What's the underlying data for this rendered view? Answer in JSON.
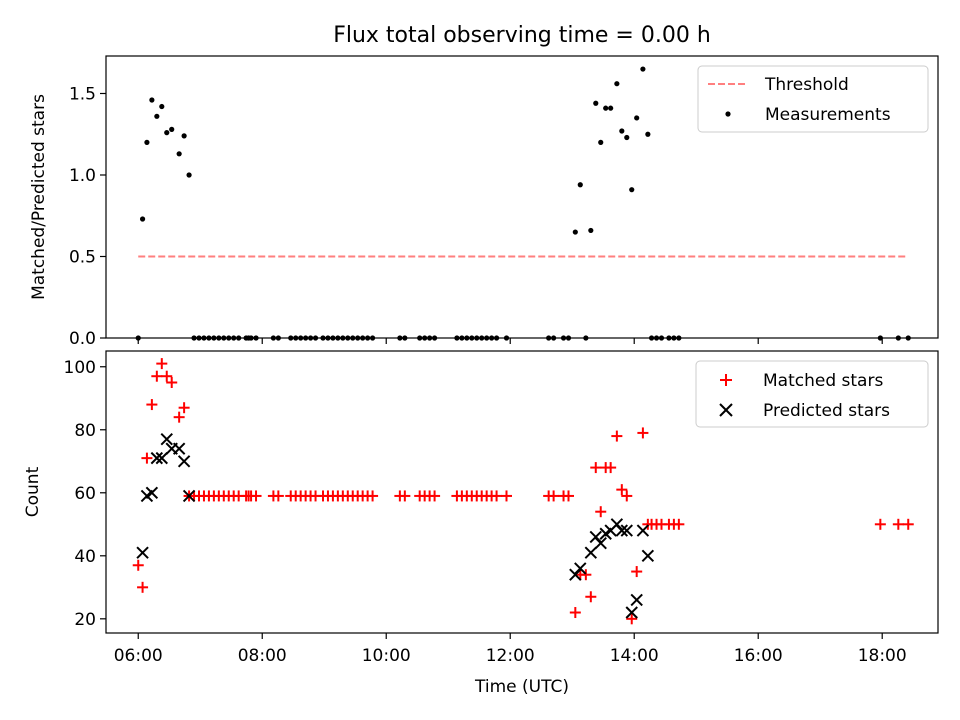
{
  "figure": {
    "title": "Flux total observing time = 0.00 h",
    "xlabel": "Time (UTC)",
    "xticks": [
      {
        "v": 6,
        "label": "06:00"
      },
      {
        "v": 8,
        "label": "08:00"
      },
      {
        "v": 10,
        "label": "10:00"
      },
      {
        "v": 12,
        "label": "12:00"
      },
      {
        "v": 14,
        "label": "14:00"
      },
      {
        "v": 16,
        "label": "16:00"
      },
      {
        "v": 18,
        "label": "18:00"
      }
    ],
    "xlim": [
      5.48,
      18.9
    ]
  },
  "chart_data": [
    {
      "type": "scatter",
      "id": "ratio",
      "ylabel": "Matched/Predicted stars",
      "ylim": [
        0,
        1.73
      ],
      "yticks": [
        {
          "v": 0,
          "label": "0.0"
        },
        {
          "v": 0.5,
          "label": "0.5"
        },
        {
          "v": 1.0,
          "label": "1.0"
        },
        {
          "v": 1.5,
          "label": "1.5"
        }
      ],
      "legend": {
        "placement": "top-right",
        "entries": [
          {
            "label": "Threshold",
            "style": "dashed-line",
            "color": "#ff7f7f"
          },
          {
            "label": "Measurements",
            "style": "dot",
            "color": "#000000"
          }
        ]
      },
      "threshold": {
        "name": "Threshold",
        "y": 0.5,
        "x": [
          6.0,
          18.42
        ],
        "color": "#ff7f7f"
      },
      "series": [
        {
          "name": "Measurements",
          "marker": "dot",
          "color": "#000000",
          "points": [
            [
              6.0,
              0
            ],
            [
              6.07,
              0.73
            ],
            [
              6.14,
              1.2
            ],
            [
              6.22,
              1.46
            ],
            [
              6.3,
              1.36
            ],
            [
              6.38,
              1.42
            ],
            [
              6.46,
              1.26
            ],
            [
              6.54,
              1.28
            ],
            [
              6.66,
              1.13
            ],
            [
              6.74,
              1.24
            ],
            [
              6.82,
              1.0
            ],
            [
              6.9,
              0
            ],
            [
              6.98,
              0
            ],
            [
              7.06,
              0
            ],
            [
              7.14,
              0
            ],
            [
              7.22,
              0
            ],
            [
              7.3,
              0
            ],
            [
              7.38,
              0
            ],
            [
              7.46,
              0
            ],
            [
              7.54,
              0
            ],
            [
              7.62,
              0
            ],
            [
              7.74,
              0
            ],
            [
              7.78,
              0
            ],
            [
              7.82,
              0
            ],
            [
              7.9,
              0
            ],
            [
              8.18,
              0
            ],
            [
              8.26,
              0
            ],
            [
              8.46,
              0
            ],
            [
              8.54,
              0
            ],
            [
              8.62,
              0
            ],
            [
              8.7,
              0
            ],
            [
              8.78,
              0
            ],
            [
              8.86,
              0
            ],
            [
              8.98,
              0
            ],
            [
              9.06,
              0
            ],
            [
              9.14,
              0
            ],
            [
              9.22,
              0
            ],
            [
              9.3,
              0
            ],
            [
              9.38,
              0
            ],
            [
              9.46,
              0
            ],
            [
              9.54,
              0
            ],
            [
              9.62,
              0
            ],
            [
              9.7,
              0
            ],
            [
              9.78,
              0
            ],
            [
              10.22,
              0
            ],
            [
              10.3,
              0
            ],
            [
              10.54,
              0
            ],
            [
              10.62,
              0
            ],
            [
              10.7,
              0
            ],
            [
              10.78,
              0
            ],
            [
              11.14,
              0
            ],
            [
              11.22,
              0
            ],
            [
              11.3,
              0
            ],
            [
              11.38,
              0
            ],
            [
              11.46,
              0
            ],
            [
              11.54,
              0
            ],
            [
              11.62,
              0
            ],
            [
              11.7,
              0
            ],
            [
              11.78,
              0
            ],
            [
              11.94,
              0
            ],
            [
              12.62,
              0
            ],
            [
              12.7,
              0
            ],
            [
              12.86,
              0
            ],
            [
              12.94,
              0
            ],
            [
              13.22,
              0
            ],
            [
              13.05,
              0.65
            ],
            [
              13.13,
              0.94
            ],
            [
              13.3,
              0.66
            ],
            [
              13.38,
              1.44
            ],
            [
              13.46,
              1.2
            ],
            [
              13.54,
              1.41
            ],
            [
              13.62,
              1.41
            ],
            [
              13.72,
              1.56
            ],
            [
              13.8,
              1.27
            ],
            [
              13.88,
              1.23
            ],
            [
              13.96,
              0.91
            ],
            [
              14.04,
              1.35
            ],
            [
              14.14,
              1.65
            ],
            [
              14.22,
              1.25
            ],
            [
              14.28,
              0
            ],
            [
              14.36,
              0
            ],
            [
              14.44,
              0
            ],
            [
              14.56,
              0
            ],
            [
              14.64,
              0
            ],
            [
              14.72,
              0
            ],
            [
              17.97,
              0
            ],
            [
              18.26,
              0
            ],
            [
              18.42,
              0
            ]
          ]
        }
      ]
    },
    {
      "type": "scatter",
      "id": "counts",
      "ylabel": "Count",
      "ylim": [
        15.5,
        105
      ],
      "yticks": [
        {
          "v": 20,
          "label": "20"
        },
        {
          "v": 40,
          "label": "40"
        },
        {
          "v": 60,
          "label": "60"
        },
        {
          "v": 80,
          "label": "80"
        },
        {
          "v": 100,
          "label": "100"
        }
      ],
      "legend": {
        "placement": "top-right",
        "entries": [
          {
            "label": "Matched stars",
            "style": "plus",
            "color": "#ff0000"
          },
          {
            "label": "Predicted stars",
            "style": "cross",
            "color": "#000000"
          }
        ]
      },
      "series": [
        {
          "name": "Matched stars",
          "marker": "plus",
          "color": "#ff0000",
          "points": [
            [
              6.0,
              37
            ],
            [
              6.07,
              30
            ],
            [
              6.14,
              71
            ],
            [
              6.22,
              88
            ],
            [
              6.3,
              97
            ],
            [
              6.38,
              101
            ],
            [
              6.46,
              97
            ],
            [
              6.54,
              95
            ],
            [
              6.66,
              84
            ],
            [
              6.74,
              87
            ],
            [
              6.82,
              59
            ],
            [
              6.9,
              59
            ],
            [
              6.98,
              59
            ],
            [
              7.06,
              59
            ],
            [
              7.14,
              59
            ],
            [
              7.22,
              59
            ],
            [
              7.3,
              59
            ],
            [
              7.38,
              59
            ],
            [
              7.46,
              59
            ],
            [
              7.54,
              59
            ],
            [
              7.62,
              59
            ],
            [
              7.74,
              59
            ],
            [
              7.78,
              59
            ],
            [
              7.82,
              59
            ],
            [
              7.9,
              59
            ],
            [
              8.18,
              59
            ],
            [
              8.26,
              59
            ],
            [
              8.46,
              59
            ],
            [
              8.54,
              59
            ],
            [
              8.62,
              59
            ],
            [
              8.7,
              59
            ],
            [
              8.78,
              59
            ],
            [
              8.86,
              59
            ],
            [
              8.98,
              59
            ],
            [
              9.06,
              59
            ],
            [
              9.14,
              59
            ],
            [
              9.22,
              59
            ],
            [
              9.3,
              59
            ],
            [
              9.38,
              59
            ],
            [
              9.46,
              59
            ],
            [
              9.54,
              59
            ],
            [
              9.62,
              59
            ],
            [
              9.7,
              59
            ],
            [
              9.78,
              59
            ],
            [
              10.22,
              59
            ],
            [
              10.3,
              59
            ],
            [
              10.54,
              59
            ],
            [
              10.62,
              59
            ],
            [
              10.7,
              59
            ],
            [
              10.78,
              59
            ],
            [
              11.14,
              59
            ],
            [
              11.22,
              59
            ],
            [
              11.3,
              59
            ],
            [
              11.38,
              59
            ],
            [
              11.46,
              59
            ],
            [
              11.54,
              59
            ],
            [
              11.62,
              59
            ],
            [
              11.7,
              59
            ],
            [
              11.78,
              59
            ],
            [
              11.94,
              59
            ],
            [
              12.62,
              59
            ],
            [
              12.7,
              59
            ],
            [
              12.86,
              59
            ],
            [
              12.94,
              59
            ],
            [
              13.05,
              22
            ],
            [
              13.13,
              34
            ],
            [
              13.22,
              34
            ],
            [
              13.3,
              27
            ],
            [
              13.38,
              68
            ],
            [
              13.46,
              54
            ],
            [
              13.54,
              68
            ],
            [
              13.62,
              68
            ],
            [
              13.72,
              78
            ],
            [
              13.8,
              61
            ],
            [
              13.88,
              59
            ],
            [
              13.96,
              20
            ],
            [
              14.04,
              35
            ],
            [
              14.14,
              79
            ],
            [
              14.22,
              50
            ],
            [
              14.28,
              50
            ],
            [
              14.36,
              50
            ],
            [
              14.44,
              50
            ],
            [
              14.56,
              50
            ],
            [
              14.64,
              50
            ],
            [
              14.72,
              50
            ],
            [
              17.97,
              50
            ],
            [
              18.26,
              50
            ],
            [
              18.42,
              50
            ]
          ]
        },
        {
          "name": "Predicted stars",
          "marker": "cross",
          "color": "#000000",
          "points": [
            [
              6.07,
              41
            ],
            [
              6.14,
              59
            ],
            [
              6.22,
              60
            ],
            [
              6.3,
              71
            ],
            [
              6.38,
              71
            ],
            [
              6.46,
              77
            ],
            [
              6.54,
              74
            ],
            [
              6.66,
              74
            ],
            [
              6.74,
              70
            ],
            [
              6.82,
              59
            ],
            [
              13.05,
              34
            ],
            [
              13.13,
              36
            ],
            [
              13.3,
              41
            ],
            [
              13.38,
              46
            ],
            [
              13.46,
              44
            ],
            [
              13.54,
              47
            ],
            [
              13.62,
              48
            ],
            [
              13.72,
              50
            ],
            [
              13.8,
              48
            ],
            [
              13.88,
              48
            ],
            [
              13.96,
              22
            ],
            [
              14.04,
              26
            ],
            [
              14.14,
              48
            ],
            [
              14.22,
              40
            ]
          ]
        }
      ]
    }
  ]
}
